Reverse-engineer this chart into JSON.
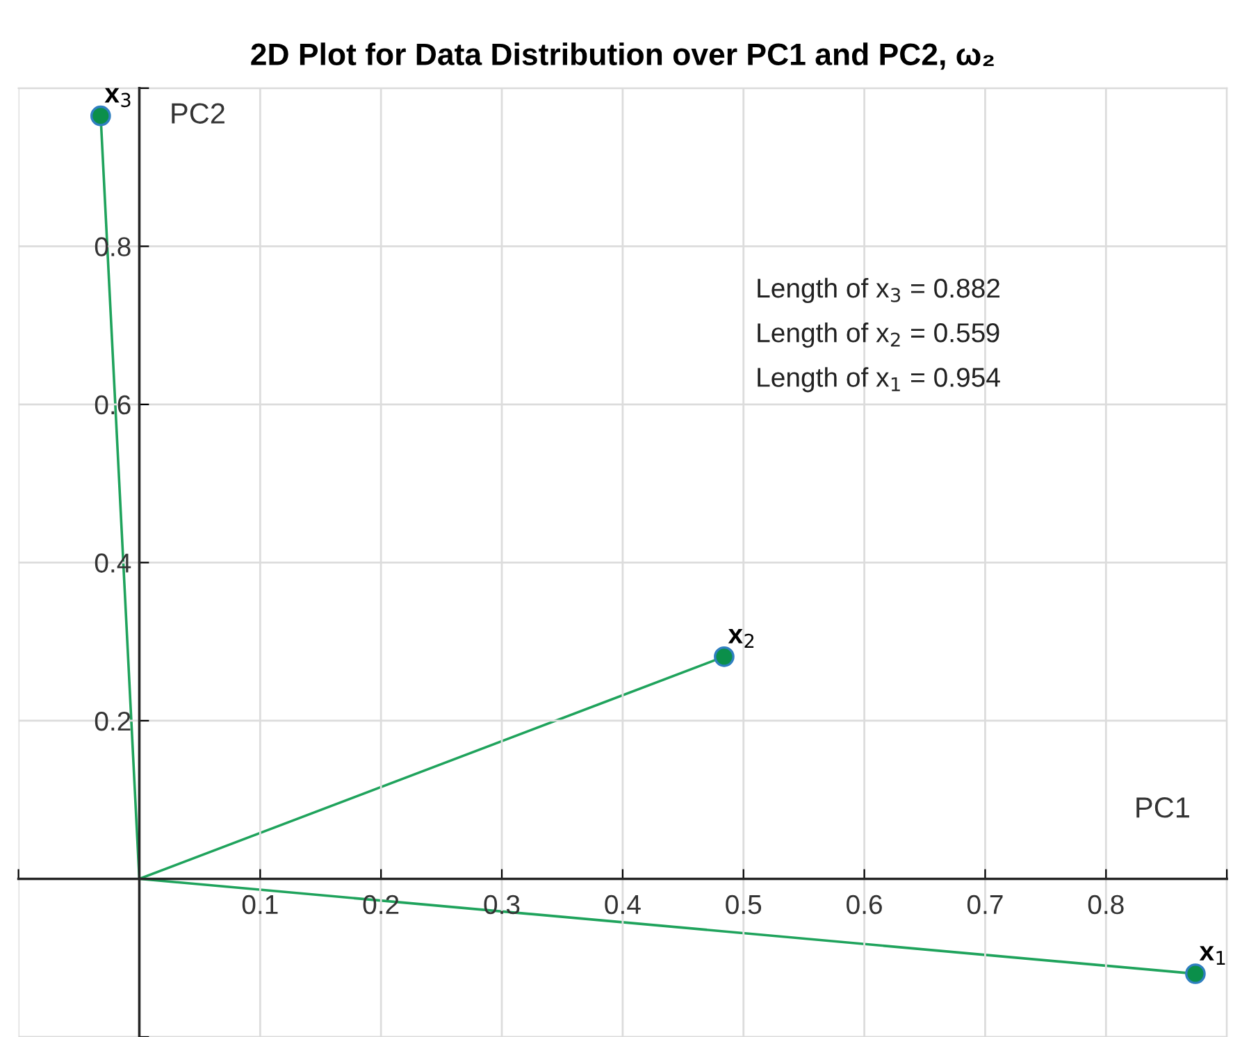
{
  "chart_data": {
    "type": "line",
    "title": "2D Plot for Data Distribution over PC1 and PC2, ω₂",
    "xlabel": "PC1",
    "ylabel": "PC2",
    "series": [
      {
        "color": "#1fa35c",
        "x": [
          0,
          0.874
        ],
        "values": [
          0,
          -0.12
        ]
      },
      {
        "color": "#1fa35c",
        "x": [
          0,
          0.484
        ],
        "values": [
          0,
          0.281
        ]
      },
      {
        "color": "#1fa35c",
        "x": [
          0,
          -0.032
        ],
        "values": [
          0,
          0.965
        ]
      },
      {
        "type": "scatter",
        "color": "#0b8f4a",
        "x": [
          0.874,
          0.484,
          -0.032
        ],
        "values": [
          -0.12,
          0.281,
          0.965
        ],
        "marker": "circle"
      }
    ],
    "annotations": [
      {
        "text": "x$_{1}$",
        "x": 0.874,
        "y": -0.12
      },
      {
        "text": "x$_{2}$",
        "x": 0.484,
        "y": 0.281
      },
      {
        "text": "x$_{3}$",
        "x": -0.032,
        "y": 0.965
      },
      "Length of x$_{3}$ = 0.882",
      "Length of x$_{2}$ = 0.559",
      "Length of x$_{1}$ = 0.954"
    ],
    "xlim": [
      -0.1,
      0.9
    ],
    "ylim": [
      -0.2,
      1.0
    ],
    "xticks": [
      {
        "value": -0.1,
        "label": null
      },
      {
        "value": 0,
        "label": null
      },
      0.1,
      0.2,
      0.3,
      0.4,
      0.5,
      0.6,
      0.7,
      0.8,
      {
        "value": 0.9,
        "label": null
      }
    ],
    "yticks": [
      {
        "value": -0.2,
        "label": null
      },
      {
        "value": 0,
        "label": null
      },
      0.2,
      0.4,
      0.6,
      0.8,
      {
        "value": 1.0,
        "label": null
      }
    ],
    "grid": true,
    "legend": false
  }
}
